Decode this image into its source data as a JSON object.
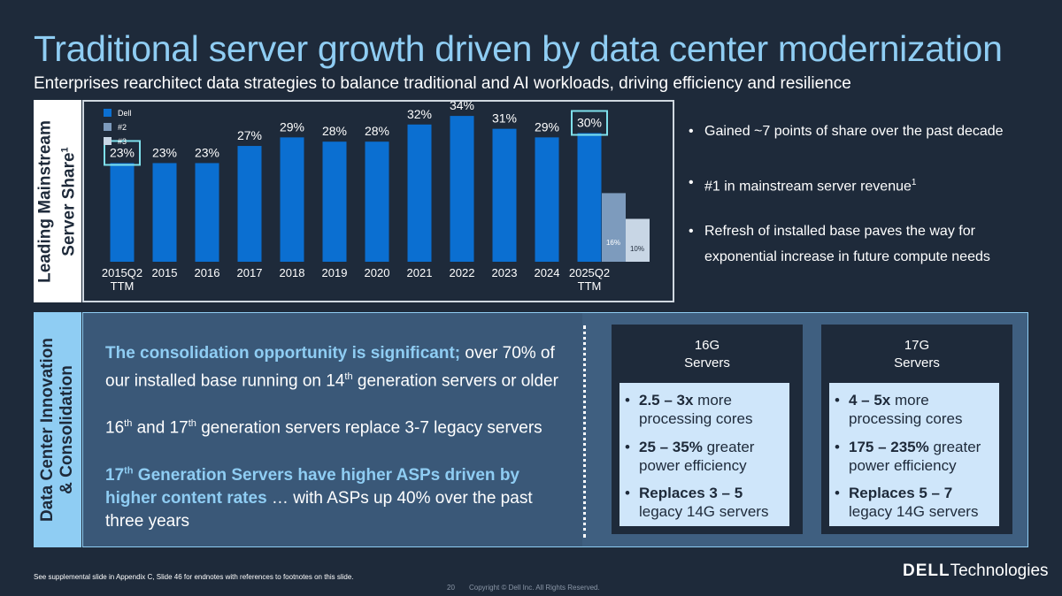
{
  "title": "Traditional server growth driven by data center modernization",
  "subtitle": "Enterprises rearchitect data strategies to balance traditional and AI workloads, driving efficiency and resilience",
  "side_labels": {
    "top": [
      "Leading Mainstream",
      "Server Share"
    ],
    "top_sup": "1",
    "bottom": [
      "Data Center Innovation",
      "& Consolidation"
    ]
  },
  "colors": {
    "dell": "#0b6fd1",
    "second": "#7d9bbd",
    "third": "#c8d6e5",
    "highlight": "#7ee0ec",
    "accent": "#8fcdf3"
  },
  "chart_data": {
    "type": "bar",
    "title": "",
    "legend": [
      "Dell",
      "#2",
      "#3"
    ],
    "legend_position": "top-left",
    "categories": [
      "2015Q2 TTM",
      "2015",
      "2016",
      "2017",
      "2018",
      "2019",
      "2020",
      "2021",
      "2022",
      "2023",
      "2024",
      "2025Q2 TTM"
    ],
    "category_lines": [
      [
        "2015Q2",
        "TTM"
      ],
      [
        "2015"
      ],
      [
        "2016"
      ],
      [
        "2017"
      ],
      [
        "2018"
      ],
      [
        "2019"
      ],
      [
        "2020"
      ],
      [
        "2021"
      ],
      [
        "2022"
      ],
      [
        "2023"
      ],
      [
        "2024"
      ],
      [
        "2025Q2",
        "TTM"
      ]
    ],
    "series": [
      {
        "name": "Dell",
        "values": [
          23,
          23,
          23,
          27,
          29,
          28,
          28,
          32,
          34,
          31,
          29,
          30
        ]
      },
      {
        "name": "#2",
        "values": [
          null,
          null,
          null,
          null,
          null,
          null,
          null,
          null,
          null,
          null,
          null,
          16
        ]
      },
      {
        "name": "#3",
        "values": [
          null,
          null,
          null,
          null,
          null,
          null,
          null,
          null,
          null,
          null,
          null,
          10
        ]
      }
    ],
    "data_labels": [
      "23%",
      "23%",
      "23%",
      "27%",
      "29%",
      "28%",
      "28%",
      "32%",
      "34%",
      "31%",
      "29%",
      "30%"
    ],
    "extra_labels": {
      "#2": "16%",
      "#3": "10%"
    },
    "highlighted": [
      "2015Q2 TTM",
      "2025Q2 TTM"
    ],
    "ylim": [
      0,
      40
    ],
    "xlabel": "",
    "ylabel": ""
  },
  "bullets": [
    {
      "text": "Gained ~7 points of share over the past decade",
      "sup": ""
    },
    {
      "text": "#1 in mainstream server revenue",
      "sup": "1"
    },
    {
      "text": "Refresh of installed base paves the way for exponential increase in future compute needs",
      "sup": ""
    }
  ],
  "consolidation": {
    "p1_hl": "The consolidation opportunity is significant;",
    "p1_a": " over 70% of our installed base running on 14",
    "p1_sup": "th",
    "p1_b": " generation servers or older",
    "p2_a": "16",
    "p2_sup1": "th",
    "p2_b": " and 17",
    "p2_sup2": "th",
    "p2_c": " generation servers replace 3-7 legacy servers",
    "p3_hl_a": "17",
    "p3_hl_sup": "th",
    "p3_hl_b": " Generation Servers have higher ASPs driven by higher content rates",
    "p3_rest": " … with ASPs up 40% over the past three years"
  },
  "servers": [
    {
      "head": [
        "16G",
        "Servers"
      ],
      "items": [
        {
          "bold": "2.5 – 3x",
          "rest": " more processing cores"
        },
        {
          "bold": "25 – 35%",
          "rest": " greater power efficiency"
        },
        {
          "bold": "Replaces 3 – 5",
          "rest": " legacy 14G servers"
        }
      ]
    },
    {
      "head": [
        "17G",
        "Servers"
      ],
      "items": [
        {
          "bold": "4 – 5x",
          "rest": " more processing cores"
        },
        {
          "bold": "175 – 235%",
          "rest": " greater power efficiency"
        },
        {
          "bold": "Replaces 5 – 7",
          "rest": " legacy 14G servers"
        }
      ]
    }
  ],
  "footnote": "See supplemental slide in Appendix C, Slide 46 for endnotes with references to footnotes on this slide.",
  "page_number": "20",
  "copyright": "Copyright © Dell Inc. All Rights Reserved.",
  "logo": {
    "bold": "DELL",
    "rest": "Technologies"
  }
}
